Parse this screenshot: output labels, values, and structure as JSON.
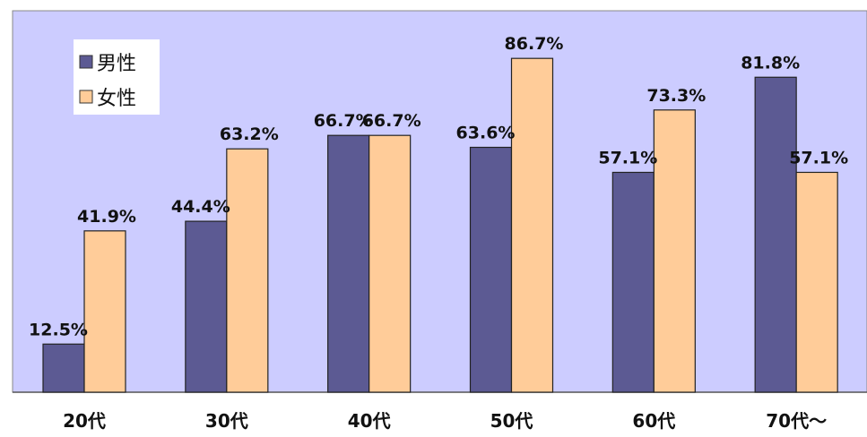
{
  "chart_data": {
    "type": "bar",
    "categories": [
      "20代",
      "30代",
      "40代",
      "50代",
      "60代",
      "70代～"
    ],
    "series": [
      {
        "name": "男性",
        "values": [
          12.5,
          44.4,
          66.7,
          63.6,
          57.1,
          81.8
        ],
        "labels": [
          "12.5%",
          "44.4%",
          "66.7%",
          "63.6%",
          "57.1%",
          "81.8%"
        ],
        "color": "#5c5a93"
      },
      {
        "name": "女性",
        "values": [
          41.9,
          63.2,
          66.7,
          86.7,
          73.3,
          57.1
        ],
        "labels": [
          "41.9%",
          "63.2%",
          "66.7%",
          "86.7%",
          "73.3%",
          "57.1%"
        ],
        "color": "#ffcc99"
      }
    ],
    "ylim": [
      0,
      100
    ],
    "grid": false,
    "legend_position": "top-left",
    "plot_background": "#ccccff"
  }
}
